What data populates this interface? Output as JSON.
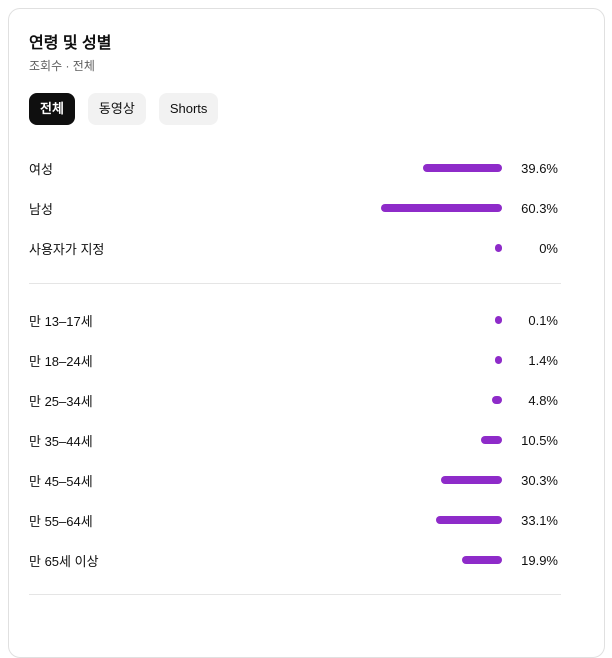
{
  "card": {
    "title": "연령 및 성별",
    "subtitle": "조회수 · 전체",
    "tabs": [
      {
        "label": "전체",
        "active": true
      },
      {
        "label": "동영상",
        "active": false
      },
      {
        "label": "Shorts",
        "active": false
      }
    ]
  },
  "colors": {
    "bar": "#8e2bc9",
    "tab_active_bg": "#0f0f0f",
    "tab_active_text": "#ffffff",
    "tab_inactive_bg": "#f2f2f2",
    "text_primary": "#0f0f0f",
    "text_secondary": "#606060",
    "divider": "#e5e5e5",
    "card_border": "#e0e0e0"
  },
  "chart_data": {
    "type": "bar",
    "orientation": "horizontal",
    "title": "연령 및 성별",
    "subtitle": "조회수 · 전체",
    "unit": "%",
    "xlim": [
      0,
      100
    ],
    "grid": false,
    "legend": false,
    "groups": [
      {
        "name": "gender",
        "rows": [
          {
            "label": "여성",
            "value": 39.6,
            "display": "39.6%"
          },
          {
            "label": "남성",
            "value": 60.3,
            "display": "60.3%"
          },
          {
            "label": "사용자가 지정",
            "value": 0,
            "display": "0%"
          }
        ]
      },
      {
        "name": "age",
        "rows": [
          {
            "label": "만 13–17세",
            "value": 0.1,
            "display": "0.1%"
          },
          {
            "label": "만 18–24세",
            "value": 1.4,
            "display": "1.4%"
          },
          {
            "label": "만 25–34세",
            "value": 4.8,
            "display": "4.8%"
          },
          {
            "label": "만 35–44세",
            "value": 10.5,
            "display": "10.5%"
          },
          {
            "label": "만 45–54세",
            "value": 30.3,
            "display": "30.3%"
          },
          {
            "label": "만 55–64세",
            "value": 33.1,
            "display": "33.1%"
          },
          {
            "label": "만 65세 이상",
            "value": 19.9,
            "display": "19.9%"
          }
        ]
      }
    ]
  }
}
